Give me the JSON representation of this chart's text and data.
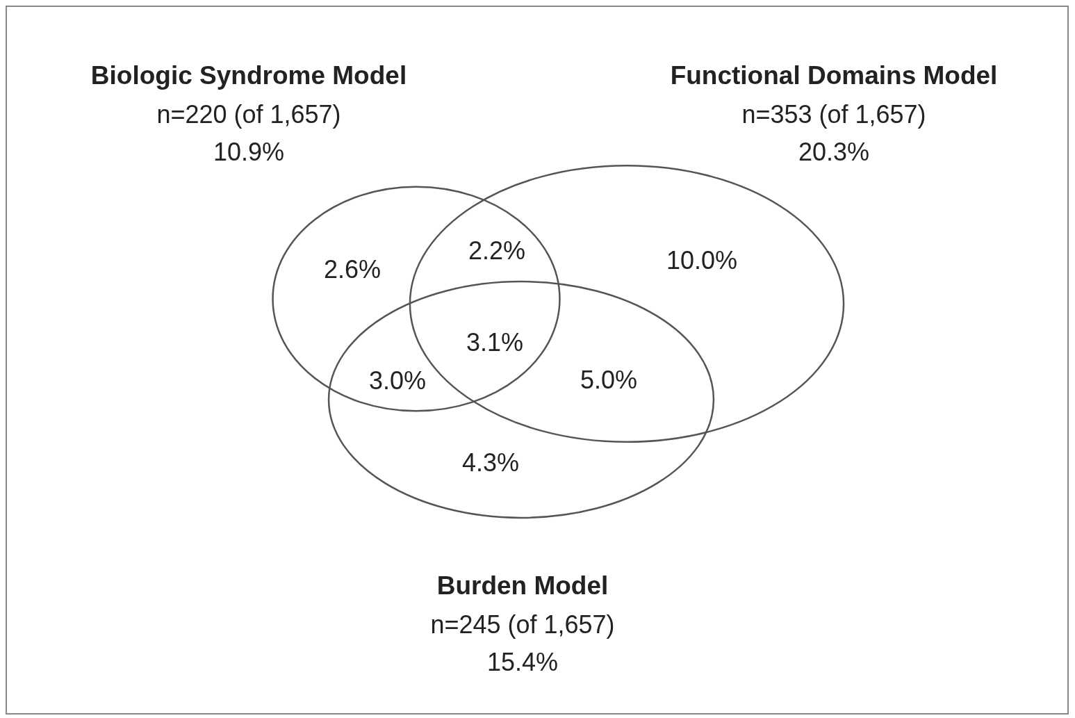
{
  "chart_data": {
    "type": "other",
    "categories": [
      "Biologic Syndrome Model",
      "Functional Domains Model",
      "Burden Model"
    ],
    "values": [
      10.9,
      20.3,
      15.4
    ],
    "value_labels": [
      "10.9%",
      "20.3%",
      "15.4%"
    ],
    "annotations": [
      "n=220 (of 1,657)",
      "n=353 (of 1,657)",
      "n=245 (of 1,657)",
      "2.6%",
      "2.2%",
      "10.0%",
      "3.1%",
      "3.0%",
      "5.0%",
      "4.3%"
    ]
  }
}
